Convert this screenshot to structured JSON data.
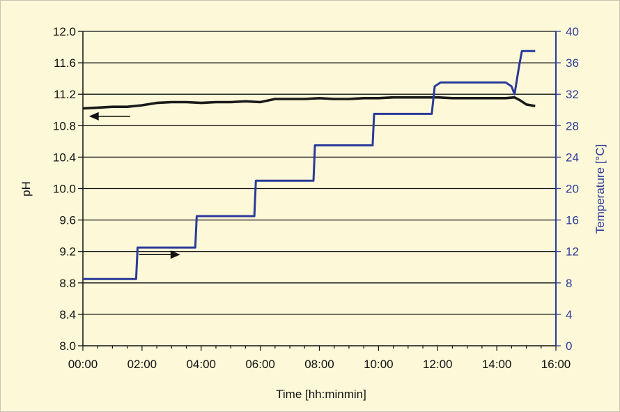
{
  "chart_data": {
    "type": "line",
    "title": "",
    "xlabel": "Time [hh:minmin]",
    "ylabel_left": "pH",
    "ylabel_right": "Temperature [°C]",
    "x_ticks": [
      "00:00",
      "02:00",
      "04:00",
      "06:00",
      "08:00",
      "10:00",
      "12:00",
      "14:00",
      "16:00"
    ],
    "y_left_ticks": [
      "8.0",
      "8.4",
      "8.8",
      "9.2",
      "9.6",
      "10.0",
      "10.4",
      "10.8",
      "11.2",
      "11.6",
      "12.0"
    ],
    "y_right_ticks": [
      "0",
      "4",
      "8",
      "12",
      "16",
      "20",
      "24",
      "28",
      "32",
      "36",
      "40"
    ],
    "xlim_hours": [
      0,
      16
    ],
    "ylim_left": [
      8.0,
      12.0
    ],
    "ylim_right": [
      0,
      40
    ],
    "grid": "horizontal",
    "colors": {
      "ph": "#1a1a1a",
      "temperature": "#2a3a9a",
      "right_axis": "#2a3a9a",
      "background": "#fdf8d8"
    },
    "series": [
      {
        "axis": "left",
        "x_hours": [
          0.0,
          0.5,
          1.0,
          1.5,
          2.0,
          2.5,
          3.0,
          3.5,
          4.0,
          4.5,
          5.0,
          5.5,
          6.0,
          6.5,
          7.0,
          7.5,
          8.0,
          8.5,
          9.0,
          9.5,
          10.0,
          10.5,
          11.0,
          11.5,
          12.0,
          12.5,
          13.0,
          13.5,
          14.0,
          14.3,
          14.6,
          14.8,
          15.0,
          15.3
        ],
        "values": [
          11.02,
          11.03,
          11.04,
          11.04,
          11.06,
          11.09,
          11.1,
          11.1,
          11.09,
          11.1,
          11.1,
          11.11,
          11.1,
          11.14,
          11.14,
          11.14,
          11.15,
          11.14,
          11.14,
          11.15,
          11.15,
          11.16,
          11.16,
          11.16,
          11.16,
          11.15,
          11.15,
          11.15,
          11.15,
          11.15,
          11.16,
          11.12,
          11.07,
          11.05
        ]
      },
      {
        "axis": "right",
        "x_hours": [
          0.0,
          1.8,
          1.85,
          3.8,
          3.85,
          5.8,
          5.85,
          7.8,
          7.85,
          9.8,
          9.85,
          11.8,
          11.9,
          12.1,
          12.3,
          14.3,
          14.5,
          14.55,
          14.6,
          14.75,
          14.85,
          15.3
        ],
        "values": [
          8.5,
          8.5,
          12.5,
          12.5,
          16.5,
          16.5,
          21.0,
          21.0,
          25.5,
          25.5,
          29.5,
          29.5,
          33.0,
          33.5,
          33.5,
          33.5,
          33.0,
          32.5,
          32.0,
          35.5,
          37.5,
          37.5
        ]
      }
    ],
    "annotations": [
      {
        "shape": "arrow",
        "direction": "left",
        "series": "pH",
        "x_hours": [
          1.6,
          0.3
        ],
        "ph": 10.92
      },
      {
        "shape": "arrow",
        "direction": "right",
        "series": "Temperature",
        "x_hours": [
          1.9,
          3.2
        ],
        "temp": 11.6
      }
    ]
  }
}
